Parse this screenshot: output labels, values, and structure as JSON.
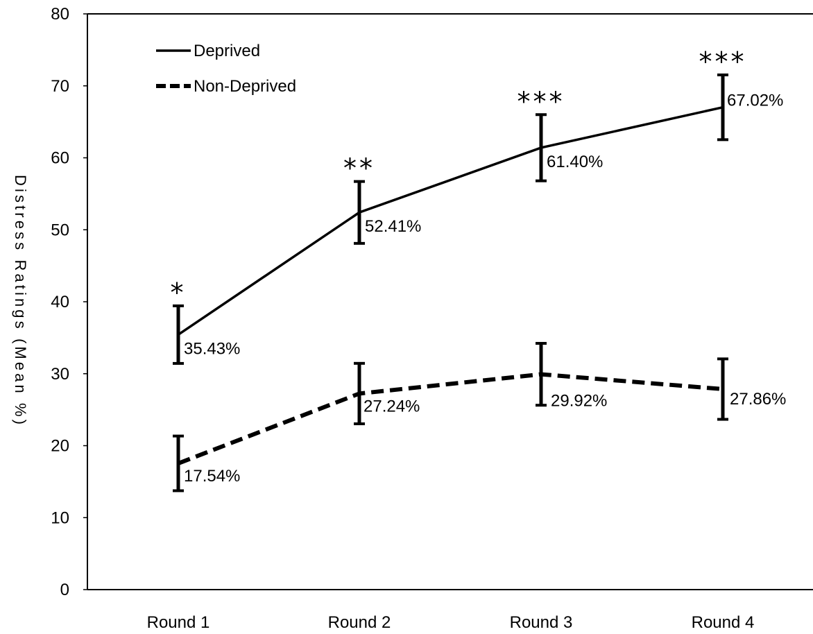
{
  "chart_data": {
    "type": "line",
    "title": "",
    "ylabel": "Distress Ratings (Mean %)",
    "xlabel": "",
    "ylim": [
      0,
      80
    ],
    "yticks": [
      "0",
      "10",
      "20",
      "30",
      "40",
      "50",
      "60",
      "70",
      "80"
    ],
    "categories": [
      "Round 1",
      "Round 2",
      "Round 3",
      "Round 4"
    ],
    "grid": false,
    "legend_position": "top-left",
    "series": [
      {
        "name": "Deprived",
        "style": "solid",
        "values": [
          35.43,
          52.41,
          61.4,
          67.02
        ],
        "labels": [
          "35.43%",
          "52.41%",
          "61.40%",
          "67.02%"
        ],
        "error": [
          4.0,
          4.3,
          4.6,
          4.5
        ],
        "significance": [
          "*",
          "**",
          "***",
          "***"
        ]
      },
      {
        "name": "Non-Deprived",
        "style": "dashed",
        "values": [
          17.54,
          27.24,
          29.92,
          27.86
        ],
        "labels": [
          "17.54%",
          "27.24%",
          "29.92%",
          "27.86%"
        ],
        "error": [
          3.8,
          4.2,
          4.3,
          4.2
        ]
      }
    ],
    "colors": {
      "line": "#000000",
      "background": "#ffffff"
    }
  }
}
